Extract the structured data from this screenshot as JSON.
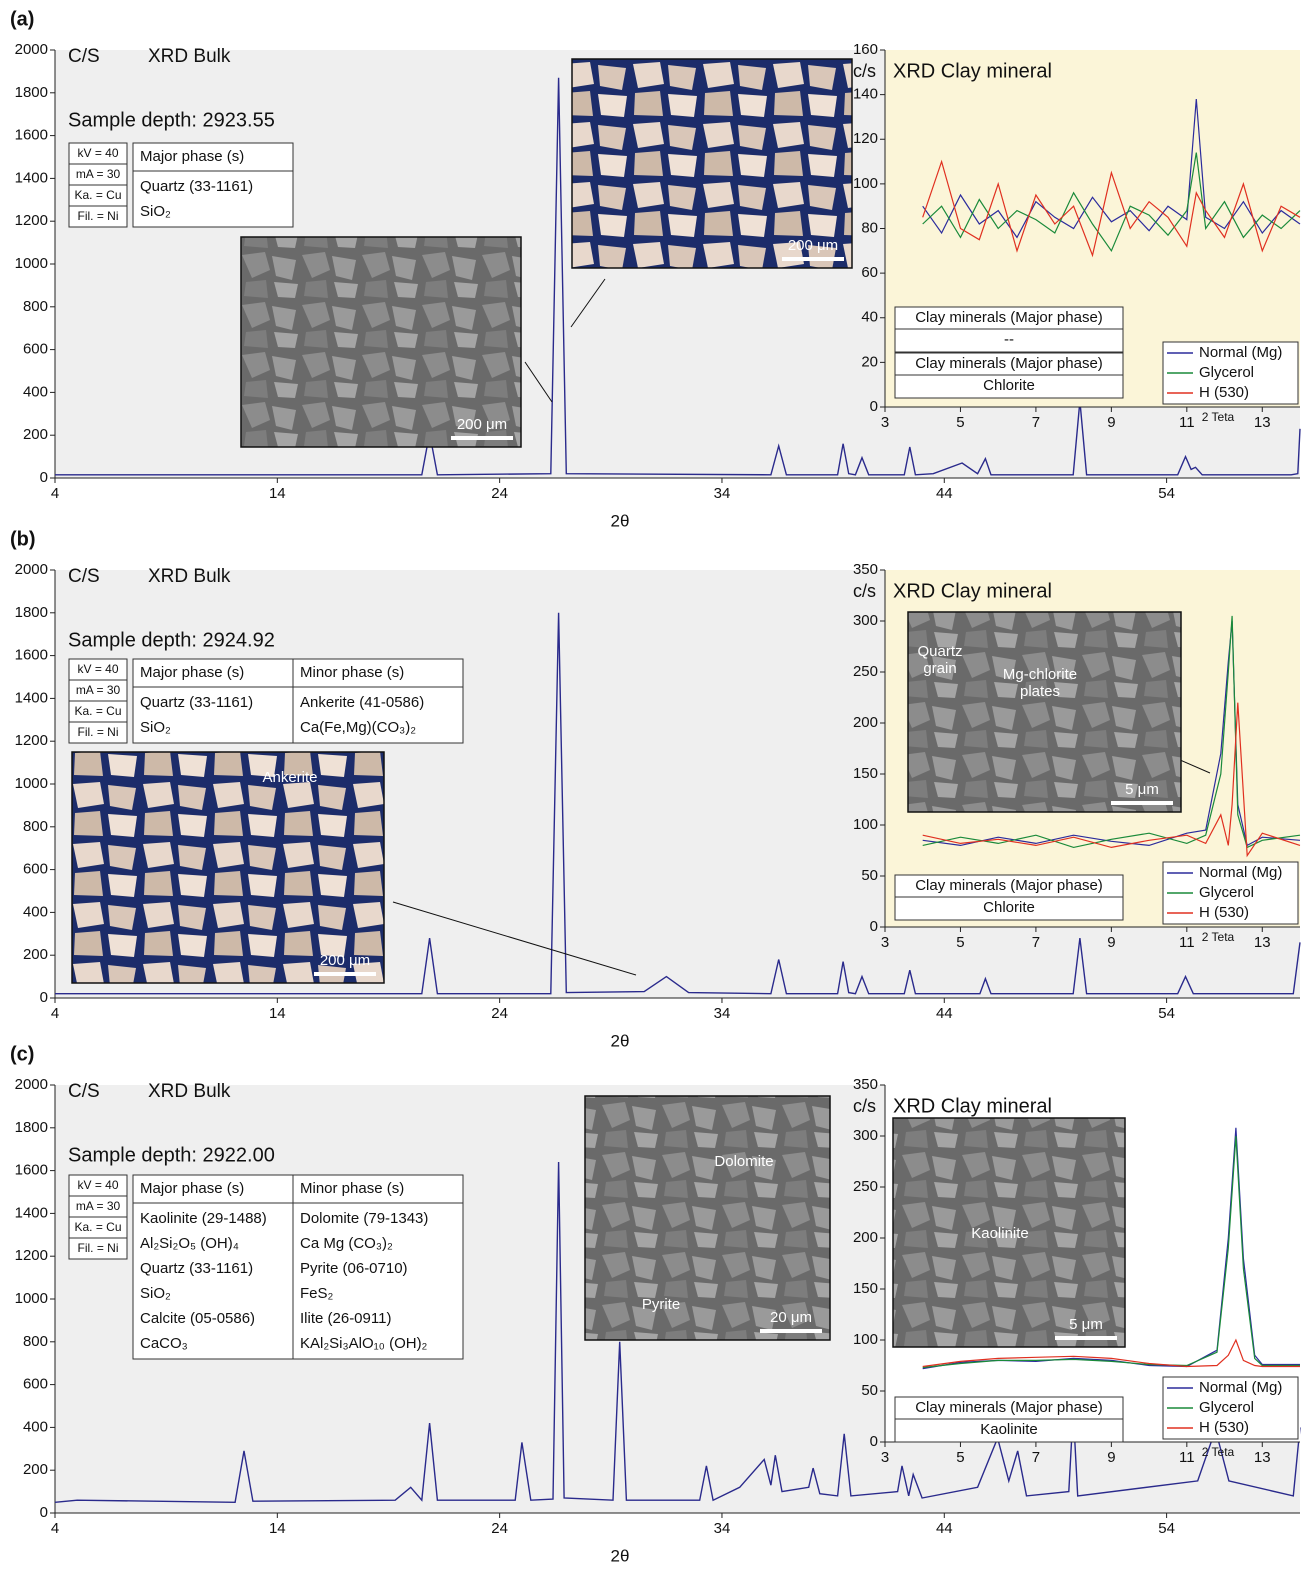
{
  "panels": [
    {
      "label": "(a)",
      "bulk": {
        "type": "line",
        "y_label": "C/S",
        "title": "XRD Bulk",
        "x_label": "2θ",
        "color": "#2a2a8c",
        "x": [
          4,
          20.5,
          20.85,
          21.2,
          26.3,
          26.65,
          27.0,
          36.2,
          36.55,
          36.9,
          39.2,
          39.45,
          39.7,
          40.0,
          40.3,
          40.6,
          42.2,
          42.45,
          42.7,
          43.5,
          44.8,
          45.5,
          45.85,
          46.1,
          49.8,
          50.1,
          50.4,
          54.5,
          54.85,
          55.1,
          55.3,
          55.6,
          59.6,
          59.9,
          60
        ],
        "values": [
          15,
          15,
          210,
          15,
          20,
          1870,
          20,
          15,
          150,
          15,
          15,
          160,
          20,
          15,
          95,
          15,
          15,
          145,
          15,
          20,
          70,
          20,
          90,
          15,
          15,
          360,
          15,
          15,
          100,
          40,
          50,
          15,
          15,
          20,
          230
        ],
        "xlim": [
          4,
          60
        ],
        "xticks": [
          4,
          14,
          24,
          34,
          44,
          54
        ],
        "ylim": [
          0,
          2000
        ],
        "yticks": [
          0,
          200,
          400,
          600,
          800,
          1000,
          1200,
          1400,
          1600,
          1800,
          2000
        ]
      },
      "sample_depth": "Sample depth: 2923.55",
      "conditions": [
        "kV = 40",
        "mA = 30",
        "Ka. = Cu",
        "Fil. = Ni"
      ],
      "phase_table": {
        "headers": [
          "Major phase (s)"
        ],
        "rows": [
          [
            "Quartz (33-1161)"
          ],
          [
            "SiO₂"
          ]
        ]
      },
      "micrographs": [
        {
          "scale": "200 μm",
          "labels": []
        },
        {
          "scale": "200 μm",
          "labels": []
        }
      ],
      "clay": {
        "type": "line",
        "title": "XRD Clay mineral",
        "y_label": "c/s",
        "x_label": "2 Teta",
        "background": "#fbf5d8",
        "legend": "lower right",
        "x": [
          4,
          4.5,
          5,
          5.5,
          6,
          6.5,
          7,
          7.5,
          8,
          8.5,
          9,
          9.5,
          10,
          10.5,
          11,
          11.25,
          11.5,
          12,
          12.5,
          13,
          13.5,
          14
        ],
        "series": [
          {
            "name": "Normal (Mg)",
            "color": "#2b2b9c",
            "values": [
              90,
              78,
              95,
              82,
              88,
              76,
              92,
              85,
              80,
              94,
              83,
              88,
              79,
              90,
              84,
              138,
              85,
              80,
              92,
              78,
              88,
              82
            ]
          },
          {
            "name": "Glycerol",
            "color": "#1a8a3a",
            "values": [
              82,
              90,
              76,
              93,
              80,
              88,
              84,
              78,
              96,
              82,
              70,
              90,
              86,
              77,
              88,
              114,
              80,
              92,
              76,
              86,
              80,
              88
            ]
          },
          {
            "name": "H (530)",
            "color": "#e03020",
            "values": [
              85,
              110,
              80,
              75,
              100,
              70,
              95,
              82,
              90,
              68,
              105,
              80,
              92,
              85,
              72,
              96,
              88,
              76,
              100,
              70,
              90,
              85
            ]
          }
        ],
        "xlim": [
          3,
          14
        ],
        "xticks": [
          3,
          5,
          7,
          9,
          11,
          13
        ],
        "ylim": [
          0,
          160
        ],
        "yticks": [
          0,
          20,
          40,
          60,
          80,
          100,
          120,
          140,
          160
        ]
      },
      "clay_tables": [
        {
          "header": "Clay minerals (Major phase)",
          "value": "--"
        },
        {
          "header": "Clay minerals (Major phase)",
          "value": "Chlorite"
        }
      ]
    },
    {
      "label": "(b)",
      "bulk": {
        "type": "line",
        "y_label": "C/S",
        "title": "XRD Bulk",
        "x_label": "2θ",
        "color": "#2a2a8c",
        "x": [
          4,
          20.5,
          20.85,
          21.2,
          26.3,
          26.65,
          27.0,
          30.5,
          31.5,
          32.5,
          36.2,
          36.55,
          36.9,
          39.2,
          39.45,
          39.7,
          40.0,
          40.3,
          40.6,
          42.2,
          42.45,
          42.7,
          45.6,
          45.85,
          46.1,
          49.8,
          50.1,
          50.4,
          54.5,
          54.85,
          55.2,
          59.7,
          60
        ],
        "values": [
          20,
          20,
          280,
          20,
          20,
          1800,
          25,
          30,
          100,
          25,
          20,
          180,
          20,
          20,
          170,
          25,
          20,
          100,
          20,
          20,
          130,
          20,
          20,
          90,
          20,
          20,
          280,
          20,
          20,
          100,
          20,
          20,
          260
        ],
        "xlim": [
          4,
          60
        ],
        "xticks": [
          4,
          14,
          24,
          34,
          44,
          54
        ],
        "ylim": [
          0,
          2000
        ],
        "yticks": [
          0,
          200,
          400,
          600,
          800,
          1000,
          1200,
          1400,
          1600,
          1800,
          2000
        ]
      },
      "sample_depth": "Sample depth: 2924.92",
      "conditions": [
        "kV = 40",
        "mA = 30",
        "Ka. = Cu",
        "Fil. = Ni"
      ],
      "phase_table": {
        "headers": [
          "Major phase (s)",
          "Minor phase (s)"
        ],
        "rows": [
          [
            "Quartz (33-1161)",
            "Ankerite (41-0586)"
          ],
          [
            "SiO₂",
            "Ca(Fe,Mg)(CO₃)₂"
          ]
        ]
      },
      "micrographs": [
        {
          "scale": "200 μm",
          "labels": [
            [
              "Ankerite"
            ]
          ]
        },
        {
          "scale": "5 μm",
          "labels": [
            [
              "Quartz",
              "grain"
            ],
            [
              "Mg-chlorite",
              "plates"
            ]
          ]
        }
      ],
      "clay": {
        "type": "line",
        "title": "XRD Clay mineral",
        "y_label": "c/s",
        "x_label": "2 Teta",
        "background": "#fbf5d8",
        "legend": "lower right",
        "x": [
          4,
          5,
          6,
          7,
          8,
          9,
          10,
          11,
          11.5,
          11.9,
          12.1,
          12.2,
          12.35,
          12.6,
          13,
          14
        ],
        "series": [
          {
            "name": "Normal (Mg)",
            "color": "#2b2b9c",
            "values": [
              85,
              80,
              88,
              82,
              90,
              84,
              80,
              92,
              95,
              170,
              260,
              300,
              120,
              80,
              88,
              85
            ]
          },
          {
            "name": "Glycerol",
            "color": "#1a8a3a",
            "values": [
              80,
              88,
              82,
              90,
              78,
              86,
              92,
              82,
              90,
              150,
              250,
              305,
              110,
              78,
              85,
              90
            ]
          },
          {
            "name": "H (530)",
            "color": "#e03020",
            "values": [
              90,
              82,
              86,
              80,
              88,
              78,
              85,
              90,
              82,
              110,
              80,
              120,
              220,
              70,
              92,
              80
            ]
          }
        ],
        "xlim": [
          3,
          14
        ],
        "xticks": [
          3,
          5,
          7,
          9,
          11,
          13
        ],
        "ylim": [
          0,
          350
        ],
        "yticks": [
          0,
          50,
          100,
          150,
          200,
          250,
          300,
          350
        ]
      },
      "clay_tables": [
        {
          "header": "Clay minerals (Major phase)",
          "value": "Chlorite"
        }
      ]
    },
    {
      "label": "(c)",
      "bulk": {
        "type": "line",
        "y_label": "C/S",
        "title": "XRD Bulk",
        "x_label": "2θ",
        "color": "#2a2a8c",
        "x": [
          4,
          5,
          12.1,
          12.5,
          12.9,
          19.3,
          20.0,
          20.5,
          20.85,
          21.2,
          24.7,
          25.0,
          25.4,
          26.4,
          26.65,
          26.9,
          29.1,
          29.4,
          29.7,
          33.0,
          33.3,
          33.6,
          34.8,
          35.9,
          36.2,
          36.4,
          36.7,
          37.9,
          38.1,
          38.4,
          39.2,
          39.5,
          39.8,
          41.9,
          42.1,
          42.4,
          42.6,
          43.0,
          45.5,
          46.4,
          46.9,
          47.3,
          47.7,
          49.6,
          49.8,
          50.0,
          55.4,
          56.2,
          56.8,
          59.7,
          60
        ],
        "values": [
          50,
          60,
          50,
          290,
          55,
          60,
          120,
          60,
          420,
          60,
          60,
          330,
          60,
          65,
          1640,
          70,
          60,
          800,
          60,
          60,
          220,
          60,
          120,
          250,
          130,
          270,
          100,
          120,
          210,
          90,
          80,
          370,
          80,
          100,
          220,
          80,
          180,
          70,
          120,
          350,
          150,
          290,
          80,
          100,
          480,
          80,
          150,
          390,
          150,
          80,
          400
        ],
        "xlim": [
          4,
          60
        ],
        "xticks": [
          4,
          14,
          24,
          34,
          44,
          54
        ],
        "ylim": [
          0,
          2000
        ],
        "yticks": [
          0,
          200,
          400,
          600,
          800,
          1000,
          1200,
          1400,
          1600,
          1800,
          2000
        ]
      },
      "sample_depth": "Sample depth: 2922.00",
      "conditions": [
        "kV = 40",
        "mA = 30",
        "Ka. = Cu",
        "Fil. = Ni"
      ],
      "phase_table": {
        "headers": [
          "Major phase (s)",
          "Minor phase (s)"
        ],
        "rows": [
          [
            "Kaolinite (29-1488)",
            "Dolomite (79-1343)"
          ],
          [
            "Al₂Si₂O₅ (OH)₄",
            "Ca Mg (CO₃)₂"
          ],
          [
            "Quartz (33-1161)",
            "Pyrite (06-0710)"
          ],
          [
            "SiO₂",
            "FeS₂"
          ],
          [
            "Calcite (05-0586)",
            "Ilite (26-0911)"
          ],
          [
            "CaCO₃",
            "KAl₂Si₃AlO₁₀ (OH)₂"
          ]
        ]
      },
      "micrographs": [
        {
          "scale": "20 μm",
          "labels": [
            [
              "Dolomite"
            ],
            [
              "Pyrite"
            ]
          ]
        },
        {
          "scale": "5 μm",
          "labels": [
            [
              "Kaolinite"
            ]
          ]
        }
      ],
      "clay": {
        "type": "line",
        "title": "XRD Clay mineral",
        "y_label": "c/s",
        "x_label": "2 Teta",
        "background": "#ffffff",
        "legend": "lower right",
        "x": [
          4,
          5,
          6,
          7,
          8,
          9,
          10,
          11,
          11.8,
          12.1,
          12.3,
          12.5,
          12.8,
          13,
          14
        ],
        "series": [
          {
            "name": "Normal (Mg)",
            "color": "#2b2b9c",
            "values": [
              72,
              78,
              80,
              79,
              82,
              80,
              75,
              74,
              90,
              200,
              308,
              180,
              85,
              76,
              76
            ]
          },
          {
            "name": "Glycerol",
            "color": "#1a8a3a",
            "values": [
              73,
              77,
              80,
              80,
              81,
              79,
              76,
              75,
              88,
              190,
              300,
              170,
              82,
              75,
              75
            ]
          },
          {
            "name": "H (530)",
            "color": "#e03020",
            "values": [
              74,
              79,
              82,
              83,
              84,
              82,
              77,
              74,
              75,
              85,
              100,
              80,
              75,
              74,
              74
            ]
          }
        ],
        "xlim": [
          3,
          14
        ],
        "xticks": [
          3,
          5,
          7,
          9,
          11,
          13
        ],
        "ylim": [
          0,
          350
        ],
        "yticks": [
          0,
          50,
          100,
          150,
          200,
          250,
          300,
          350
        ]
      },
      "clay_tables": [
        {
          "header": "Clay minerals (Major phase)",
          "value": "Kaolinite"
        }
      ]
    }
  ]
}
